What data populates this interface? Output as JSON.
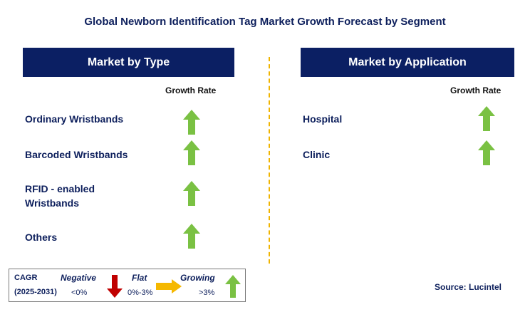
{
  "title": "Global Newborn Identification Tag Market Growth Forecast by Segment",
  "left_panel": {
    "header": "Market by Type",
    "column_label": "Growth Rate",
    "rows": [
      {
        "label": "Ordinary Wristbands",
        "trend": "growing"
      },
      {
        "label": "Barcoded Wristbands",
        "trend": "growing"
      },
      {
        "label_line1": "RFID - enabled",
        "label_line2": "Wristbands",
        "trend": "growing"
      },
      {
        "label": "Others",
        "trend": "growing"
      }
    ]
  },
  "right_panel": {
    "header": "Market by Application",
    "column_label": "Growth Rate",
    "rows": [
      {
        "label": "Hospital",
        "trend": "growing"
      },
      {
        "label": "Clinic",
        "trend": "growing"
      }
    ]
  },
  "legend": {
    "cagr": "CAGR",
    "period": "(2025-2031)",
    "negative": "Negative",
    "negative_range": "<0%",
    "flat": "Flat",
    "flat_range": "0%-3%",
    "growing": "Growing",
    "growing_range": ">3%"
  },
  "source": "Source: Lucintel",
  "colors": {
    "header_bg": "#0b1f63",
    "up_arrow": "#7ac143",
    "down_arrow": "#c00000",
    "flat_arrow": "#f5b800",
    "divider": "#f0b400"
  }
}
